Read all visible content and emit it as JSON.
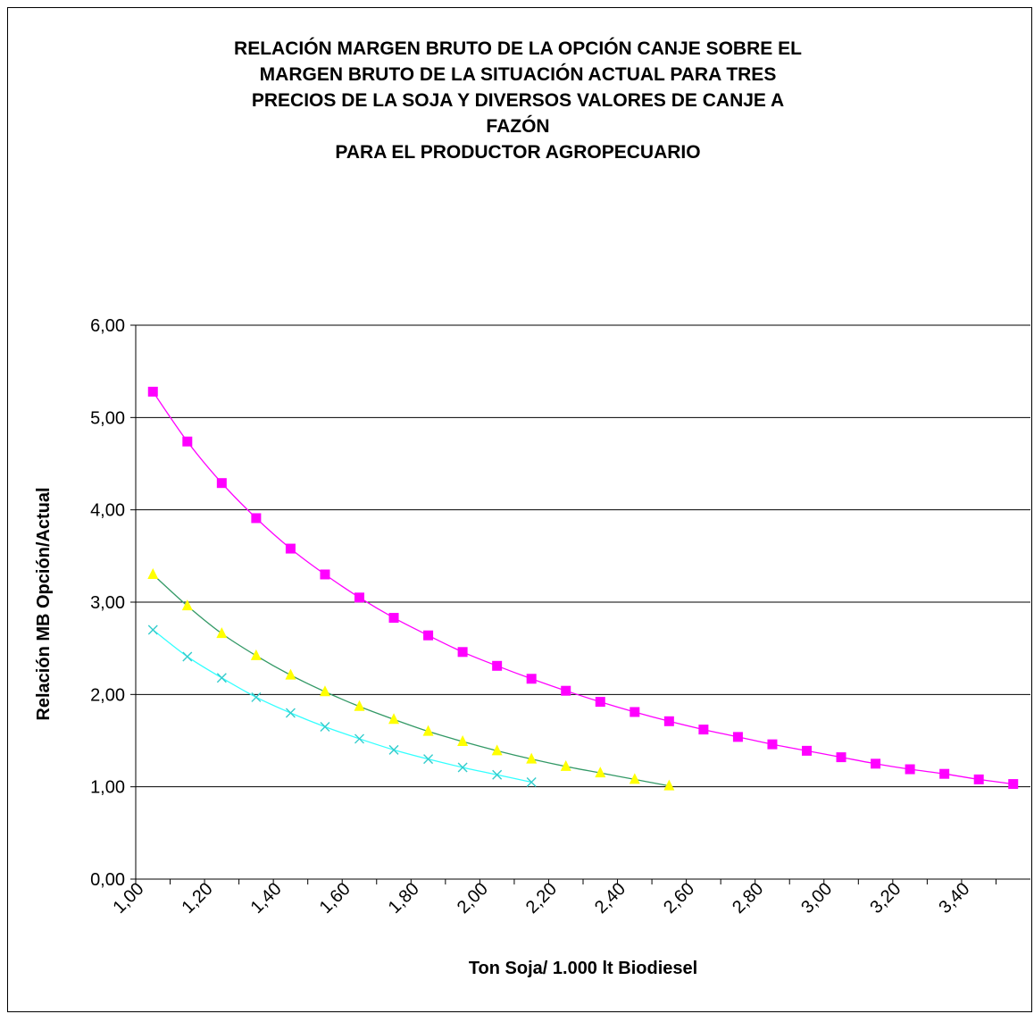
{
  "chart_data": {
    "type": "line",
    "title_lines": [
      "RELACIÓN MARGEN BRUTO DE LA OPCIÓN CANJE SOBRE EL",
      "MARGEN BRUTO DE LA SITUACIÓN ACTUAL PARA TRES",
      "PRECIOS DE LA SOJA Y DIVERSOS VALORES DE CANJE A",
      "FAZÓN",
      "PARA EL PRODUCTOR AGROPECUARIO"
    ],
    "xlabel": "Ton Soja/ 1.000 lt Biodiesel",
    "ylabel": "Relación MB Opción/Actual",
    "xlim": [
      1.0,
      3.6
    ],
    "ylim": [
      0,
      6
    ],
    "x_ticks": [
      "1,00",
      "1,20",
      "1,40",
      "1,60",
      "1,80",
      "2,00",
      "2,20",
      "2,40",
      "2,60",
      "2,80",
      "3,00",
      "3,20",
      "3,40"
    ],
    "x_tick_values": [
      1.0,
      1.2,
      1.4,
      1.6,
      1.8,
      2.0,
      2.2,
      2.4,
      2.6,
      2.8,
      3.0,
      3.2,
      3.4
    ],
    "y_ticks": [
      "0,00",
      "1,00",
      "2,00",
      "3,00",
      "4,00",
      "5,00",
      "6,00"
    ],
    "y_tick_values": [
      0,
      1,
      2,
      3,
      4,
      5,
      6
    ],
    "grid": "horizontal",
    "legend": "none",
    "series": [
      {
        "marker": "square",
        "marker_color": "#ff00ff",
        "line_color": "#ff00ff",
        "x": [
          1.05,
          1.15,
          1.25,
          1.35,
          1.45,
          1.55,
          1.65,
          1.75,
          1.85,
          1.95,
          2.05,
          2.15,
          2.25,
          2.35,
          2.45,
          2.55,
          2.65,
          2.75,
          2.85,
          2.95,
          3.05,
          3.15,
          3.25,
          3.35,
          3.45,
          3.55
        ],
        "values": [
          5.28,
          4.74,
          4.29,
          3.91,
          3.58,
          3.3,
          3.05,
          2.83,
          2.64,
          2.46,
          2.31,
          2.17,
          2.04,
          1.92,
          1.81,
          1.71,
          1.62,
          1.54,
          1.46,
          1.39,
          1.32,
          1.25,
          1.19,
          1.14,
          1.08,
          1.03
        ]
      },
      {
        "marker": "triangle",
        "marker_color": "#ffff00",
        "line_color": "#339966",
        "x": [
          1.05,
          1.15,
          1.25,
          1.35,
          1.45,
          1.55,
          1.65,
          1.75,
          1.85,
          1.95,
          2.05,
          2.15,
          2.25,
          2.35,
          2.45,
          2.55
        ],
        "values": [
          3.3,
          2.96,
          2.66,
          2.42,
          2.21,
          2.03,
          1.87,
          1.73,
          1.6,
          1.49,
          1.39,
          1.3,
          1.22,
          1.15,
          1.08,
          1.01
        ]
      },
      {
        "marker": "x",
        "marker_color": "#33cccc",
        "line_color": "#33ffff",
        "x": [
          1.05,
          1.15,
          1.25,
          1.35,
          1.45,
          1.55,
          1.65,
          1.75,
          1.85,
          1.95,
          2.05,
          2.15
        ],
        "values": [
          2.7,
          2.41,
          2.18,
          1.97,
          1.8,
          1.65,
          1.52,
          1.4,
          1.3,
          1.21,
          1.13,
          1.05
        ]
      }
    ]
  }
}
